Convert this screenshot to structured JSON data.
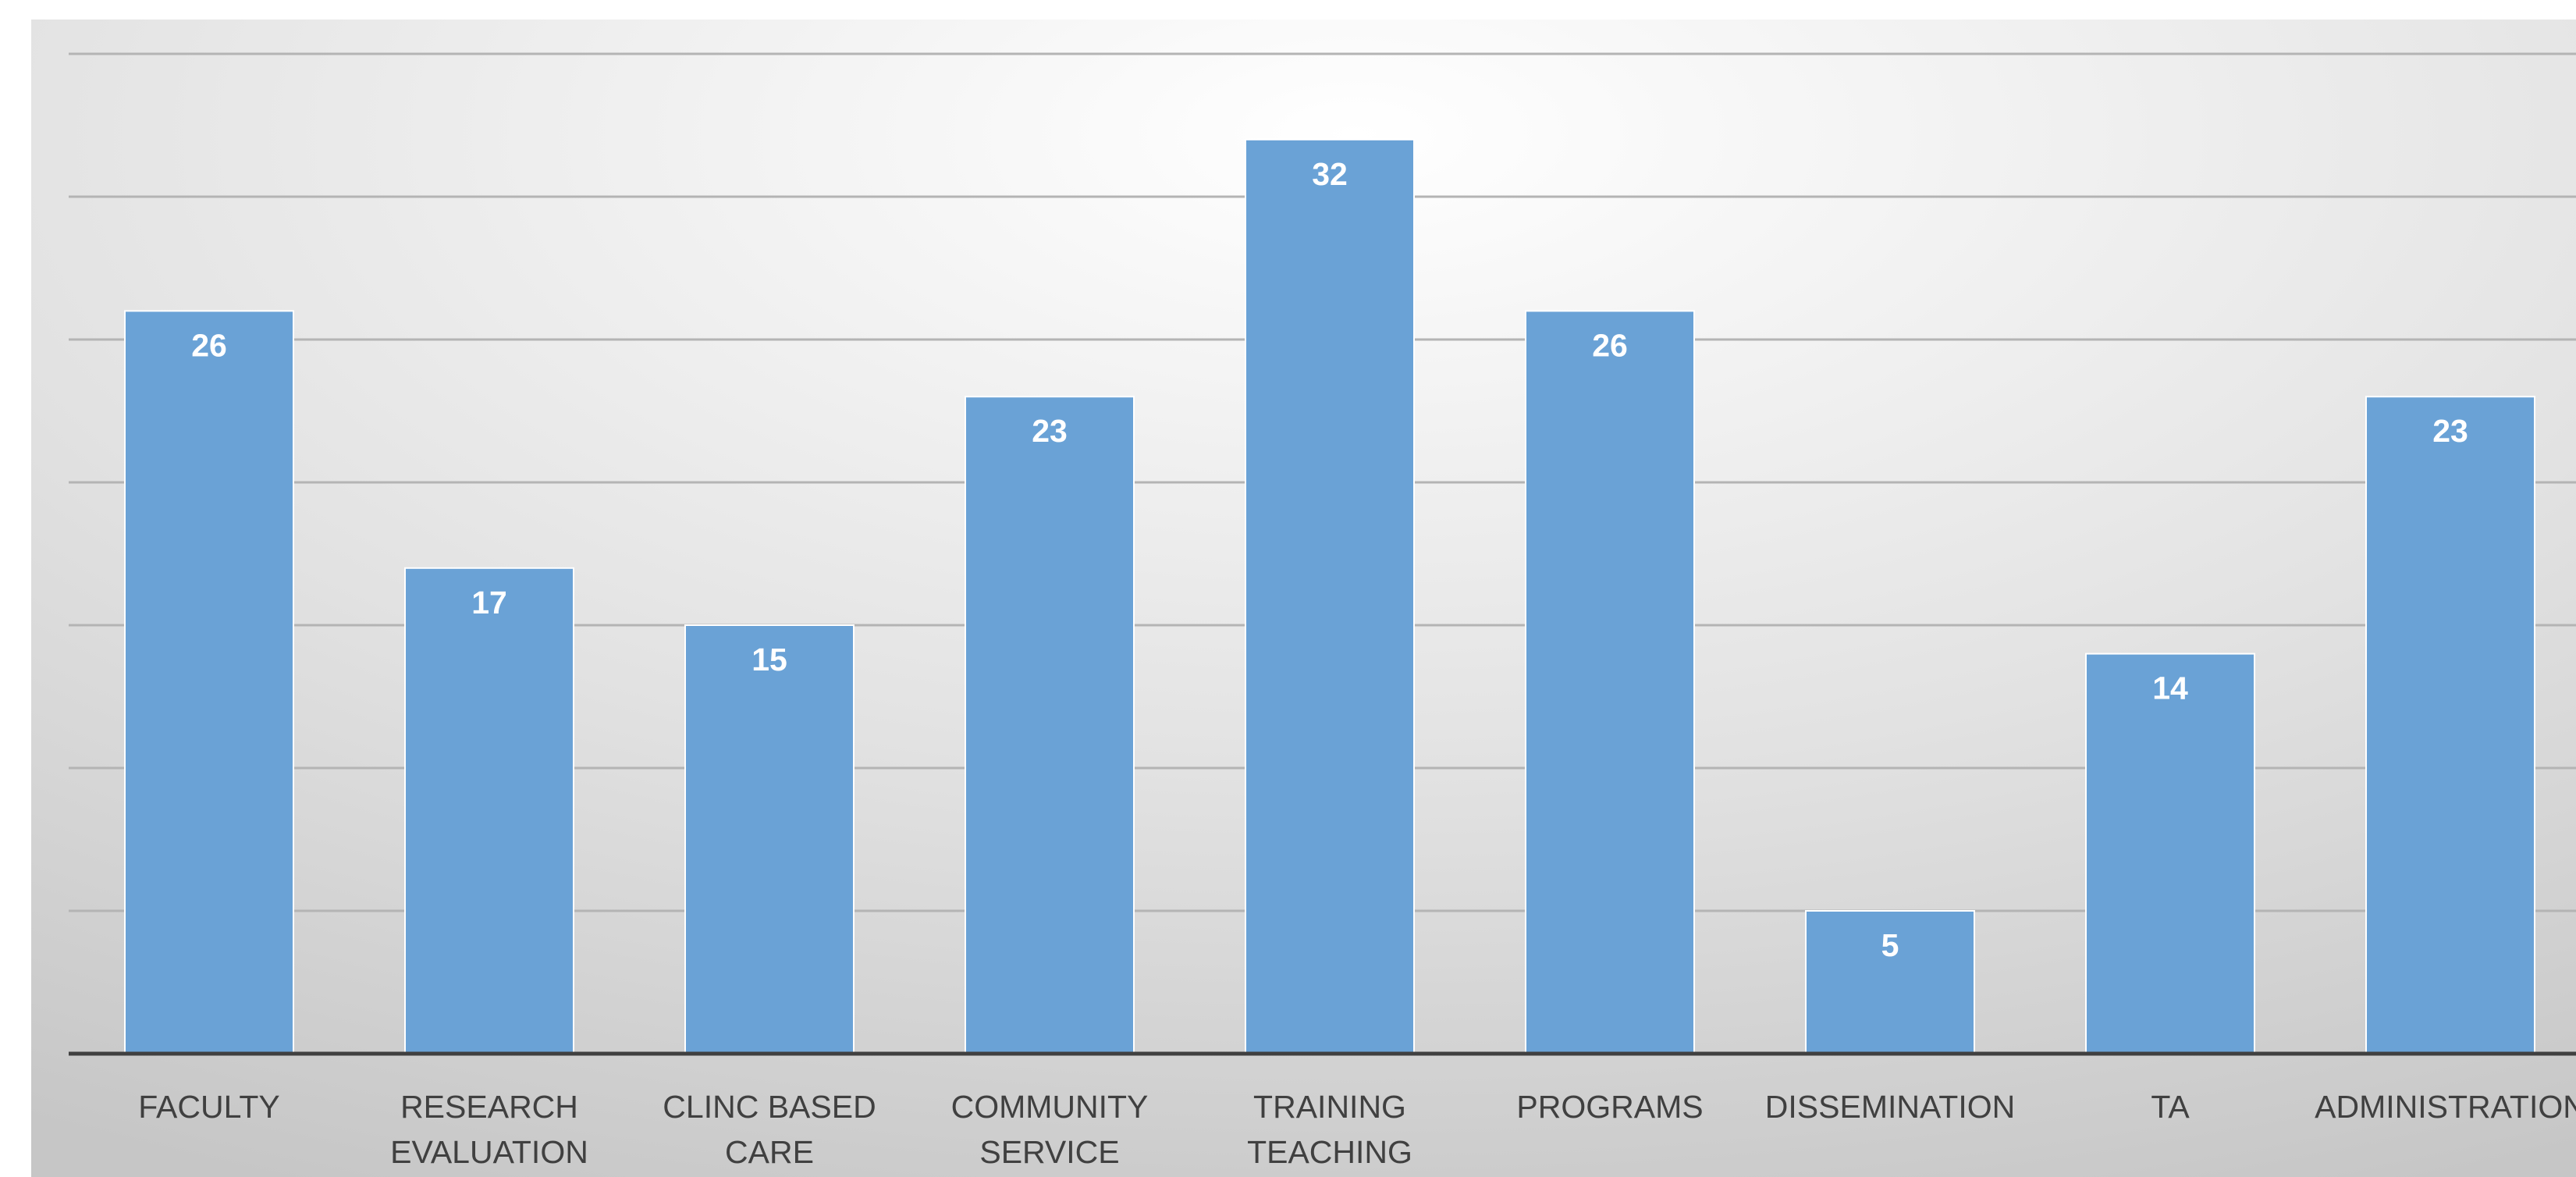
{
  "chart_data": {
    "type": "bar",
    "title": "",
    "xlabel": "",
    "ylabel": "",
    "ylim": [
      0,
      36
    ],
    "grid": true,
    "legend": "none",
    "show_y_axis_labels": false,
    "categories": [
      "FACULTY",
      "RESEARCH EVALUATION",
      "CLINC BASED CARE",
      "COMMUNITY SERVICE",
      "TRAINING TEACHING",
      "PROGRAMS",
      "DISSEMINATION",
      "TA",
      "ADMINISTRATION"
    ],
    "category_lines": [
      [
        "FACULTY"
      ],
      [
        "RESEARCH",
        "EVALUATION"
      ],
      [
        "CLINC BASED",
        "CARE"
      ],
      [
        "COMMUNITY",
        "SERVICE"
      ],
      [
        "TRAINING",
        "TEACHING"
      ],
      [
        "PROGRAMS"
      ],
      [
        "DISSEMINATION"
      ],
      [
        "TA"
      ],
      [
        "ADMINISTRATION"
      ]
    ],
    "values": [
      26,
      17,
      15,
      23,
      32,
      26,
      5,
      14,
      23
    ],
    "value_labels": [
      "26",
      "17",
      "15",
      "23",
      "32",
      "26",
      "5",
      "14",
      "23"
    ],
    "colors": {
      "bar": "#6aa2d6",
      "bar_edge": "#ffffff",
      "axis": "#404040",
      "grid": "#b4b4b4",
      "label_text": "#404040",
      "value_text": "#ffffff",
      "background_center": "#ffffff",
      "background_edge": "#c6c6c6"
    }
  }
}
